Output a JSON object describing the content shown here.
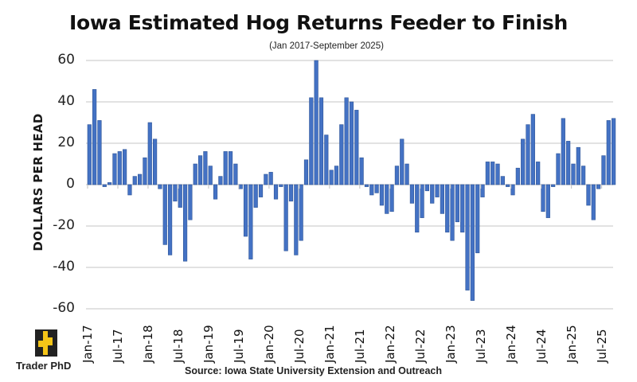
{
  "title": "Iowa Estimated Hog Returns Feeder to Finish",
  "subtitle": "(Jan 2017-September 2025)",
  "source": "Source: Iowa State University Extension and Outreach",
  "logo": {
    "label": "Trader PhD",
    "icon": "trader-phd-logo-icon",
    "colors": {
      "dark": "#222222",
      "accent": "#f5c518"
    }
  },
  "colors": {
    "bar_fill": "#4472c4",
    "bar_edge": "#2f5597",
    "grid": "#d9d9d9"
  },
  "chart_data": {
    "type": "bar",
    "title": "Iowa Estimated Hog Returns Feeder to Finish",
    "subtitle": "(Jan 2017-September 2025)",
    "xlabel": "",
    "ylabel": "DOLLARS PER HEAD",
    "ylim": [
      -60,
      60
    ],
    "yticks": [
      60,
      40,
      20,
      0,
      -20,
      -40,
      -60
    ],
    "grid": true,
    "legend": null,
    "x_tick_labels": [
      "Jan-17",
      "Jul-17",
      "Jan-18",
      "Jul-18",
      "Jan-19",
      "Jul-19",
      "Jan-20",
      "Jul-20",
      "Jan-21",
      "Jul-21",
      "Jan-22",
      "Jul-22",
      "Jan-23",
      "Jul-23",
      "Jan-24",
      "Jul-24",
      "Jan-25",
      "Jul-25"
    ],
    "start": "Jan-17",
    "frequency": "monthly",
    "values": [
      29,
      46,
      31,
      -1,
      1,
      15,
      16,
      17,
      -5,
      4,
      5,
      13,
      30,
      22,
      -2,
      -29,
      -34,
      -8,
      -11,
      -37,
      -17,
      10,
      14,
      16,
      9,
      -7,
      4,
      16,
      16,
      10,
      -2,
      -25,
      -36,
      -11,
      -6,
      5,
      6,
      -7,
      -1,
      -32,
      -8,
      -34,
      -27,
      12,
      42,
      60,
      42,
      24,
      7,
      9,
      29,
      42,
      40,
      36,
      13,
      -1,
      -5,
      -4,
      -10,
      -14,
      -13,
      9,
      22,
      10,
      -9,
      -23,
      -16,
      -3,
      -9,
      -6,
      -14,
      -23,
      -27,
      -18,
      -23,
      -51,
      -56,
      -33,
      -6,
      11,
      11,
      10,
      4,
      -1,
      -5,
      8,
      22,
      29,
      34,
      11,
      -13,
      -16,
      -1,
      15,
      32,
      21,
      10,
      18,
      9,
      -10,
      -17,
      -2,
      14,
      31,
      32
    ],
    "source": "Source: Iowa State University Extension and Outreach"
  }
}
